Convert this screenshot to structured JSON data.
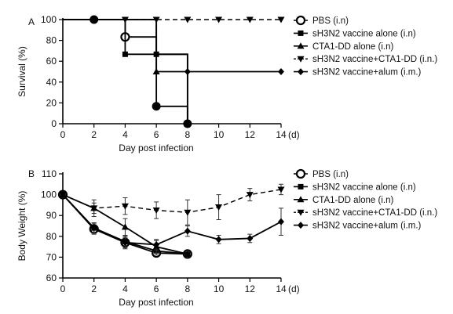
{
  "chart_data": [
    {
      "type": "line",
      "panel_label": "A",
      "xlabel": "Day post infection",
      "ylabel": "Survival (%)",
      "x_unit": "(d)",
      "xlim": [
        0,
        14
      ],
      "ylim": [
        0,
        100
      ],
      "xticks": [
        0,
        2,
        4,
        6,
        8,
        10,
        12,
        14
      ],
      "yticks": [
        0,
        20,
        40,
        60,
        80,
        100
      ],
      "step": true,
      "legend": "right",
      "series": [
        {
          "name": "PBS (i.n)",
          "marker": "open-circle",
          "dash": false,
          "x": [
            2,
            4,
            6,
            8
          ],
          "y": [
            100,
            83.3,
            16.7,
            0
          ]
        },
        {
          "name": "sH3N2 vaccine alone (i.n)",
          "marker": "square",
          "dash": false,
          "x": [
            4,
            6,
            8
          ],
          "y": [
            66.7,
            66.7,
            0
          ]
        },
        {
          "name": "CTA1-DD alone (i.n)",
          "marker": "triangle",
          "dash": false,
          "x": [
            6,
            8
          ],
          "y": [
            50,
            0
          ]
        },
        {
          "name": "sH3N2 vaccine+CTA1-DD (i.n.)",
          "marker": "triangle-down",
          "dash": true,
          "x": [
            4,
            6,
            8,
            10,
            12,
            14
          ],
          "y": [
            100,
            100,
            100,
            100,
            100,
            100
          ]
        },
        {
          "name": "sH3N2 vaccine+alum (i.m.)",
          "marker": "diamond",
          "dash": false,
          "x": [
            6,
            8,
            14
          ],
          "y": [
            66.7,
            50,
            50
          ]
        }
      ]
    },
    {
      "type": "line",
      "panel_label": "B",
      "xlabel": "Day post infection",
      "ylabel": "Body Weight (%)",
      "x_unit": "(d)",
      "xlim": [
        0,
        14
      ],
      "ylim": [
        60,
        110
      ],
      "xticks": [
        0,
        2,
        4,
        6,
        8,
        10,
        12,
        14
      ],
      "yticks": [
        60,
        70,
        80,
        90,
        100,
        110
      ],
      "legend": "right",
      "series": [
        {
          "name": "PBS (i.n)",
          "marker": "open-circle",
          "dash": false,
          "x": [
            0,
            2,
            4,
            6,
            8
          ],
          "y": [
            100,
            83.5,
            77,
            72,
            71.5
          ],
          "err": [
            0,
            2.5,
            2.5,
            1.5,
            1
          ]
        },
        {
          "name": "sH3N2 vaccine alone (i.n)",
          "marker": "square",
          "dash": false,
          "x": [
            0,
            2,
            4,
            6,
            8
          ],
          "y": [
            100,
            84,
            77.5,
            73,
            71.5
          ],
          "err": [
            0,
            2.5,
            3,
            2,
            1
          ]
        },
        {
          "name": "CTA1-DD alone (i.n)",
          "marker": "triangle",
          "dash": false,
          "x": [
            0,
            2,
            4,
            6,
            8
          ],
          "y": [
            100,
            93.5,
            84.5,
            75,
            71.5
          ],
          "err": [
            0,
            2.5,
            4,
            3,
            1
          ]
        },
        {
          "name": "sH3N2 vaccine+CTA1-DD (i.n.)",
          "marker": "triangle-down",
          "dash": true,
          "x": [
            0,
            2,
            4,
            6,
            8,
            10,
            12,
            14
          ],
          "y": [
            100,
            93.5,
            94.5,
            92.5,
            91.5,
            94,
            100,
            102.5
          ],
          "err": [
            0,
            4,
            4,
            4,
            6,
            6,
            3,
            2.5
          ]
        },
        {
          "name": "sH3N2 vaccine+alum (i.m.)",
          "marker": "diamond",
          "dash": false,
          "x": [
            0,
            2,
            4,
            6,
            8,
            10,
            12,
            14
          ],
          "y": [
            100,
            84,
            77,
            76,
            82.5,
            78.5,
            79,
            87
          ],
          "err": [
            0,
            2.5,
            3,
            2.5,
            2.5,
            2,
            2,
            6.5
          ]
        }
      ]
    }
  ]
}
